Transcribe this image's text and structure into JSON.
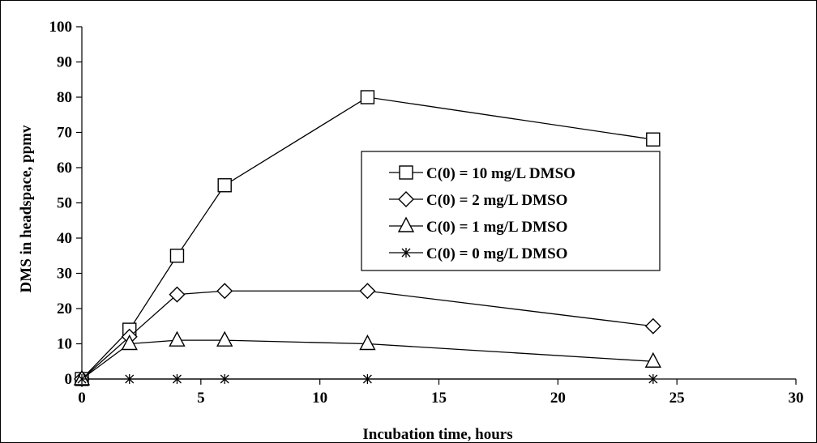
{
  "chart_data": {
    "type": "line",
    "xlabel": "Incubation time, hours",
    "ylabel": "DMS in headspace, ppmv",
    "xlim": [
      0,
      30
    ],
    "ylim": [
      0,
      100
    ],
    "xticks": [
      "0",
      "5",
      "10",
      "15",
      "20",
      "25",
      "30"
    ],
    "yticks": [
      "0",
      "10",
      "20",
      "30",
      "40",
      "50",
      "60",
      "70",
      "80",
      "90",
      "100"
    ],
    "grid": false,
    "legend_position": "center-right",
    "x": [
      0,
      2,
      4,
      6,
      12,
      24
    ],
    "series": [
      {
        "name": "C(0) = 10 mg/L DMSO",
        "marker": "square",
        "values": [
          0,
          14,
          35,
          55,
          80,
          68
        ]
      },
      {
        "name": "C(0) = 2 mg/L DMSO",
        "marker": "diamond",
        "values": [
          0,
          12,
          24,
          25,
          25,
          15
        ]
      },
      {
        "name": "C(0) = 1 mg/L DMSO",
        "marker": "triangle",
        "values": [
          0,
          10,
          11,
          11,
          10,
          5
        ]
      },
      {
        "name": "C(0) = 0 mg/L DMSO",
        "marker": "asterisk",
        "values": [
          0,
          0,
          0,
          0,
          0,
          0
        ]
      }
    ]
  }
}
